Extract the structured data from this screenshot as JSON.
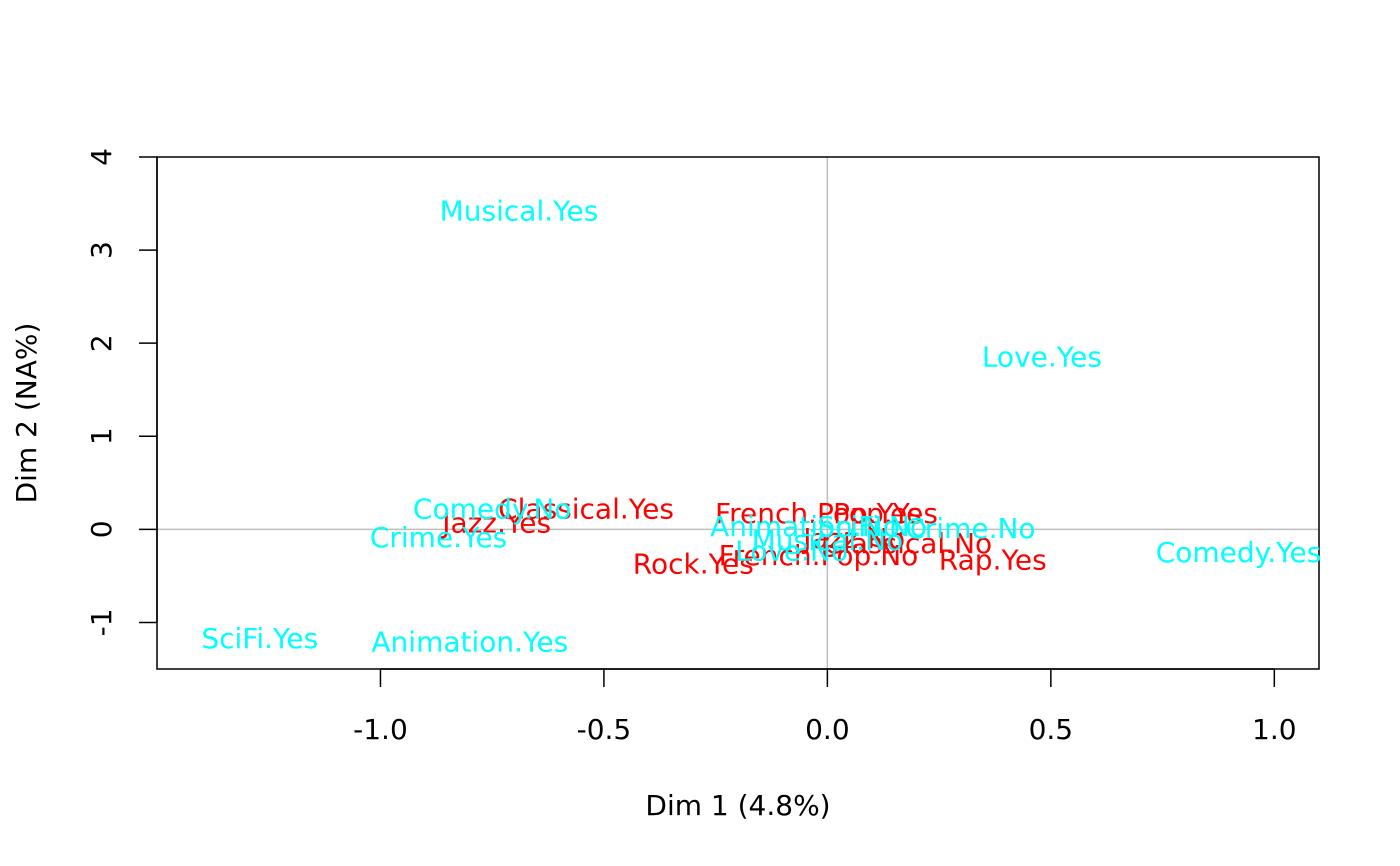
{
  "chart_data": {
    "type": "scatter",
    "title": "",
    "xlabel": "Dim 1 (4.8%)",
    "ylabel": "Dim 2 (NA%)",
    "xlim": [
      -1.5,
      1.1
    ],
    "ylim": [
      -1.5,
      4.0
    ],
    "x_ticks": [
      -1.0,
      -0.5,
      0.0,
      0.5,
      1.0
    ],
    "x_tick_labels": [
      "-1.0",
      "-0.5",
      "0.0",
      "0.5",
      "1.0"
    ],
    "y_ticks": [
      -1,
      0,
      1,
      2,
      3,
      4
    ],
    "y_tick_labels": [
      "-1",
      "0",
      "1",
      "2",
      "3",
      "4"
    ],
    "reference_lines": {
      "x": 0,
      "y": 0,
      "color": "#bebebe"
    },
    "colors": {
      "group_red": "#ff0000",
      "group_cyan": "#00ffff"
    },
    "series": [
      {
        "color": "#ff0000",
        "points": [
          {
            "label": "Classical.Yes",
            "x": -0.54,
            "y": 0.22
          },
          {
            "label": "Jazz.Yes",
            "x": -0.74,
            "y": 0.07
          },
          {
            "label": "Rock.Yes",
            "x": -0.3,
            "y": -0.37
          },
          {
            "label": "French.Pop.Yes",
            "x": -0.02,
            "y": 0.17
          },
          {
            "label": "Pop.Yes",
            "x": 0.13,
            "y": 0.17
          },
          {
            "label": "French.Pop.No",
            "x": -0.02,
            "y": -0.28
          },
          {
            "label": "Classical.No",
            "x": 0.18,
            "y": -0.15
          },
          {
            "label": "Rap.Yes",
            "x": 0.37,
            "y": -0.33
          },
          {
            "label": "Jazz.No",
            "x": 0.06,
            "y": -0.1
          }
        ]
      },
      {
        "color": "#00ffff",
        "points": [
          {
            "label": "Musical.Yes",
            "x": -0.69,
            "y": 3.42
          },
          {
            "label": "Love.Yes",
            "x": 0.48,
            "y": 1.85
          },
          {
            "label": "Comedy.No",
            "x": -0.75,
            "y": 0.22
          },
          {
            "label": "Crime.Yes",
            "x": -0.87,
            "y": -0.09
          },
          {
            "label": "SciFi.Yes",
            "x": -1.27,
            "y": -1.17
          },
          {
            "label": "Animation.Yes",
            "x": -0.8,
            "y": -1.21
          },
          {
            "label": "Comedy.Yes",
            "x": 0.92,
            "y": -0.25
          },
          {
            "label": "Crime.No",
            "x": 0.32,
            "y": 0.01
          },
          {
            "label": "Animation.No",
            "x": -0.05,
            "y": 0.03
          },
          {
            "label": "SciFi.No",
            "x": 0.1,
            "y": 0.03
          },
          {
            "label": "Musical.No",
            "x": 0.0,
            "y": -0.12
          },
          {
            "label": "Love.No",
            "x": -0.08,
            "y": -0.23
          }
        ]
      }
    ]
  }
}
